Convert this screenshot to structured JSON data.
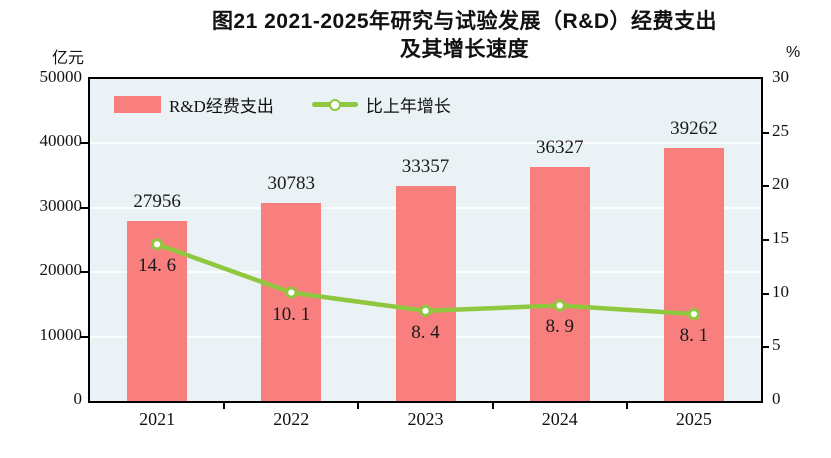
{
  "title": {
    "line1": "图21  2021-2025年研究与试验发展（R&D）经费支出",
    "line2": "及其增长速度"
  },
  "axes": {
    "left_unit": "亿元",
    "right_unit": "%",
    "left_ticks": [
      "50000",
      "40000",
      "30000",
      "20000",
      "10000",
      "0"
    ],
    "right_ticks": [
      "30",
      "25",
      "20",
      "15",
      "10",
      "5",
      "0"
    ],
    "x_ticks": [
      "2021",
      "2022",
      "2023",
      "2024",
      "2025"
    ]
  },
  "legend": {
    "bar_label": "R&D经费支出",
    "line_label": "比上年增长"
  },
  "colors": {
    "bar": "#F97F7F",
    "line": "#8FC73F",
    "marker_fill": "#FFFFFF",
    "plot_bg": "#EAF2F6",
    "grid": "#FBFDFE",
    "axis": "#000000"
  },
  "chart_data": {
    "type": "bar",
    "title": "图21 2021-2025年研究与试验发展（R&D）经费支出及其增长速度",
    "categories": [
      "2021",
      "2022",
      "2023",
      "2024",
      "2025"
    ],
    "series": [
      {
        "name": "R&D经费支出",
        "type": "bar",
        "axis": "left",
        "values": [
          27956,
          30783,
          33357,
          36327,
          39262
        ],
        "labels": [
          "27956",
          "30783",
          "33357",
          "36327",
          "39262"
        ]
      },
      {
        "name": "比上年增长",
        "type": "line",
        "axis": "right",
        "values": [
          14.6,
          10.1,
          8.4,
          8.9,
          8.1
        ],
        "labels": [
          "14. 6",
          "10. 1",
          "8. 4",
          "8. 9",
          "8. 1"
        ]
      }
    ],
    "left_axis": {
      "label": "亿元",
      "min": 0,
      "max": 50000,
      "step": 10000
    },
    "right_axis": {
      "label": "%",
      "min": 0,
      "max": 30,
      "step": 5
    },
    "grid": "horizontal",
    "legend_position": "top-left-inside"
  }
}
